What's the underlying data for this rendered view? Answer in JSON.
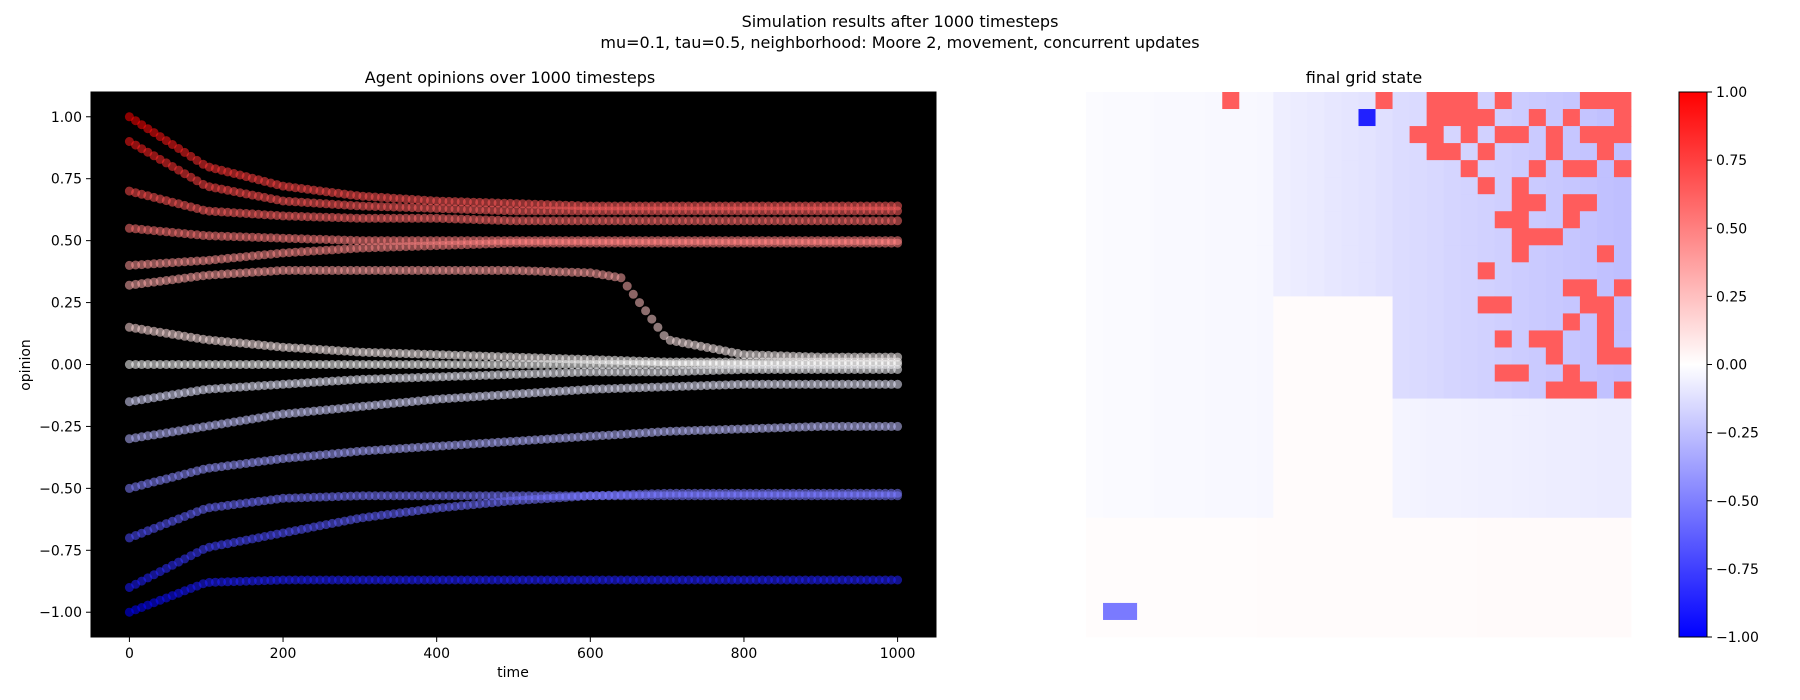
{
  "suptitle": "Simulation results after 1000 timesteps",
  "subtitle": "mu=0.1, tau=0.5, neighborhood: Moore 2, movement, concurrent  updates",
  "chart_data": [
    {
      "type": "scatter",
      "title": "Agent opinions over 1000 timesteps",
      "xlabel": "time",
      "ylabel": "opinion",
      "xlim": [
        -50,
        1050
      ],
      "ylim": [
        -1.1,
        1.1
      ],
      "xticks": [
        0,
        200,
        400,
        600,
        800,
        1000
      ],
      "yticks": [
        -1.0,
        -0.75,
        -0.5,
        -0.25,
        0.0,
        0.25,
        0.5,
        0.75,
        1.0
      ],
      "background": "#000000",
      "colormap": "bwr",
      "color_range": [
        -1.0,
        1.0
      ],
      "grid": false,
      "series": [
        {
          "x": [
            0,
            100,
            200,
            300,
            400,
            500,
            600,
            700,
            800,
            900,
            1000
          ],
          "values": [
            1.0,
            0.8,
            0.72,
            0.68,
            0.66,
            0.65,
            0.64,
            0.64,
            0.64,
            0.64,
            0.64
          ]
        },
        {
          "x": [
            0,
            100,
            200,
            300,
            400,
            500,
            600,
            700,
            800,
            900,
            1000
          ],
          "values": [
            0.9,
            0.72,
            0.66,
            0.64,
            0.63,
            0.62,
            0.62,
            0.62,
            0.62,
            0.62,
            0.62
          ]
        },
        {
          "x": [
            0,
            100,
            200,
            300,
            400,
            500,
            600,
            700,
            800,
            900,
            1000
          ],
          "values": [
            0.7,
            0.62,
            0.6,
            0.59,
            0.59,
            0.58,
            0.58,
            0.58,
            0.58,
            0.58,
            0.58
          ]
        },
        {
          "x": [
            0,
            100,
            200,
            300,
            400,
            500,
            600,
            700,
            800,
            900,
            1000
          ],
          "values": [
            0.55,
            0.52,
            0.51,
            0.5,
            0.5,
            0.5,
            0.5,
            0.5,
            0.5,
            0.5,
            0.5
          ]
        },
        {
          "x": [
            0,
            100,
            200,
            300,
            400,
            500,
            600,
            700,
            800,
            900,
            1000
          ],
          "values": [
            0.4,
            0.42,
            0.45,
            0.47,
            0.48,
            0.49,
            0.49,
            0.49,
            0.49,
            0.49,
            0.49
          ]
        },
        {
          "x": [
            0,
            100,
            200,
            300,
            400,
            500,
            600,
            640,
            700,
            800,
            900,
            1000
          ],
          "values": [
            0.32,
            0.36,
            0.38,
            0.38,
            0.38,
            0.38,
            0.37,
            0.35,
            0.1,
            0.04,
            0.03,
            0.03
          ]
        },
        {
          "x": [
            0,
            100,
            200,
            300,
            400,
            500,
            600,
            700,
            800,
            900,
            1000
          ],
          "values": [
            0.15,
            0.1,
            0.07,
            0.05,
            0.04,
            0.03,
            0.02,
            0.01,
            0.01,
            0.01,
            0.01
          ]
        },
        {
          "x": [
            0,
            100,
            200,
            300,
            400,
            500,
            600,
            700,
            800,
            900,
            1000
          ],
          "values": [
            0.0,
            0.0,
            0.0,
            0.0,
            0.0,
            0.0,
            0.0,
            0.0,
            0.0,
            0.0,
            0.0
          ]
        },
        {
          "x": [
            0,
            100,
            200,
            300,
            400,
            500,
            600,
            700,
            800,
            900,
            1000
          ],
          "values": [
            -0.15,
            -0.1,
            -0.08,
            -0.06,
            -0.05,
            -0.04,
            -0.03,
            -0.03,
            -0.02,
            -0.02,
            -0.02
          ]
        },
        {
          "x": [
            0,
            100,
            200,
            300,
            400,
            500,
            600,
            700,
            800,
            900,
            1000
          ],
          "values": [
            -0.3,
            -0.25,
            -0.2,
            -0.17,
            -0.14,
            -0.12,
            -0.1,
            -0.09,
            -0.08,
            -0.08,
            -0.08
          ]
        },
        {
          "x": [
            0,
            100,
            200,
            300,
            400,
            500,
            600,
            700,
            800,
            900,
            1000
          ],
          "values": [
            -0.5,
            -0.42,
            -0.38,
            -0.35,
            -0.33,
            -0.31,
            -0.29,
            -0.27,
            -0.26,
            -0.25,
            -0.25
          ]
        },
        {
          "x": [
            0,
            100,
            200,
            300,
            400,
            500,
            600,
            700,
            800,
            900,
            1000
          ],
          "values": [
            -0.7,
            -0.58,
            -0.54,
            -0.53,
            -0.53,
            -0.53,
            -0.53,
            -0.53,
            -0.53,
            -0.53,
            -0.53
          ]
        },
        {
          "x": [
            0,
            100,
            200,
            300,
            400,
            500,
            600,
            700,
            800,
            900,
            1000
          ],
          "values": [
            -0.9,
            -0.74,
            -0.68,
            -0.62,
            -0.58,
            -0.55,
            -0.53,
            -0.52,
            -0.52,
            -0.52,
            -0.52
          ]
        },
        {
          "x": [
            0,
            100,
            200,
            300,
            400,
            500,
            600,
            700,
            800,
            900,
            1000
          ],
          "values": [
            -1.0,
            -0.88,
            -0.87,
            -0.87,
            -0.87,
            -0.87,
            -0.87,
            -0.87,
            -0.87,
            -0.87,
            -0.87
          ]
        }
      ]
    },
    {
      "type": "heatmap",
      "title": "final grid state",
      "colormap": "bwr",
      "vmin": -1.0,
      "vmax": 1.0,
      "colorbar_ticks": [
        -1.0,
        -0.75,
        -0.5,
        -0.25,
        0.0,
        0.25,
        0.5,
        0.75,
        1.0
      ],
      "colorbar_tick_labels": [
        "−1.00",
        "−0.75",
        "−0.50",
        "−0.25",
        "0.00",
        "0.25",
        "0.50",
        "0.75",
        "1.00"
      ],
      "grid_size": [
        32,
        32
      ],
      "cells": [
        [
          0,
          8,
          0.64
        ],
        [
          0,
          17,
          0.64
        ],
        [
          0,
          20,
          0.64
        ],
        [
          0,
          21,
          0.64
        ],
        [
          0,
          22,
          0.64
        ],
        [
          0,
          24,
          0.64
        ],
        [
          0,
          29,
          0.64
        ],
        [
          0,
          30,
          0.64
        ],
        [
          0,
          31,
          0.64
        ],
        [
          1,
          16,
          -0.87
        ],
        [
          1,
          20,
          0.64
        ],
        [
          1,
          21,
          0.64
        ],
        [
          1,
          22,
          0.64
        ],
        [
          1,
          23,
          0.64
        ],
        [
          1,
          26,
          0.64
        ],
        [
          1,
          28,
          0.64
        ],
        [
          1,
          31,
          0.64
        ],
        [
          2,
          19,
          0.64
        ],
        [
          2,
          20,
          0.64
        ],
        [
          2,
          22,
          0.64
        ],
        [
          2,
          24,
          0.64
        ],
        [
          2,
          25,
          0.64
        ],
        [
          2,
          27,
          0.64
        ],
        [
          2,
          29,
          0.64
        ],
        [
          2,
          30,
          0.64
        ],
        [
          2,
          31,
          0.64
        ],
        [
          3,
          20,
          0.64
        ],
        [
          3,
          21,
          0.64
        ],
        [
          3,
          23,
          0.64
        ],
        [
          3,
          27,
          0.64
        ],
        [
          3,
          30,
          0.64
        ],
        [
          4,
          22,
          0.64
        ],
        [
          4,
          26,
          0.64
        ],
        [
          4,
          28,
          0.64
        ],
        [
          4,
          29,
          0.64
        ],
        [
          4,
          31,
          0.64
        ],
        [
          5,
          23,
          0.64
        ],
        [
          5,
          25,
          0.64
        ],
        [
          6,
          25,
          0.64
        ],
        [
          6,
          26,
          0.64
        ],
        [
          6,
          28,
          0.64
        ],
        [
          6,
          29,
          0.64
        ],
        [
          7,
          24,
          0.64
        ],
        [
          7,
          25,
          0.64
        ],
        [
          7,
          28,
          0.64
        ],
        [
          8,
          25,
          0.64
        ],
        [
          8,
          26,
          0.64
        ],
        [
          8,
          27,
          0.64
        ],
        [
          9,
          25,
          0.64
        ],
        [
          9,
          30,
          0.64
        ],
        [
          10,
          23,
          0.64
        ],
        [
          11,
          28,
          0.64
        ],
        [
          11,
          29,
          0.64
        ],
        [
          11,
          31,
          0.64
        ],
        [
          12,
          23,
          0.64
        ],
        [
          12,
          24,
          0.64
        ],
        [
          12,
          29,
          0.64
        ],
        [
          12,
          30,
          0.64
        ],
        [
          13,
          28,
          0.64
        ],
        [
          13,
          30,
          0.64
        ],
        [
          14,
          24,
          0.64
        ],
        [
          14,
          26,
          0.64
        ],
        [
          14,
          27,
          0.64
        ],
        [
          14,
          30,
          0.64
        ],
        [
          15,
          27,
          0.64
        ],
        [
          15,
          30,
          0.64
        ],
        [
          15,
          31,
          0.64
        ],
        [
          16,
          24,
          0.64
        ],
        [
          16,
          25,
          0.64
        ],
        [
          16,
          28,
          0.64
        ],
        [
          17,
          27,
          0.64
        ],
        [
          17,
          28,
          0.64
        ],
        [
          17,
          29,
          0.64
        ],
        [
          17,
          31,
          0.64
        ],
        [
          30,
          1,
          -0.52
        ],
        [
          30,
          2,
          -0.52
        ]
      ],
      "background_regions": [
        {
          "rows": [
            0,
            17
          ],
          "cols": [
            18,
            31
          ],
          "value": -0.25
        },
        {
          "rows": [
            0,
            11
          ],
          "cols": [
            11,
            17
          ],
          "value": -0.12
        },
        {
          "rows": [
            18,
            24
          ],
          "cols": [
            18,
            31
          ],
          "value": -0.08
        },
        {
          "rows": [
            0,
            24
          ],
          "cols": [
            0,
            10
          ],
          "value": -0.03
        },
        {
          "rows": [
            12,
            31
          ],
          "cols": [
            0,
            31
          ],
          "value": 0.02
        }
      ]
    }
  ]
}
